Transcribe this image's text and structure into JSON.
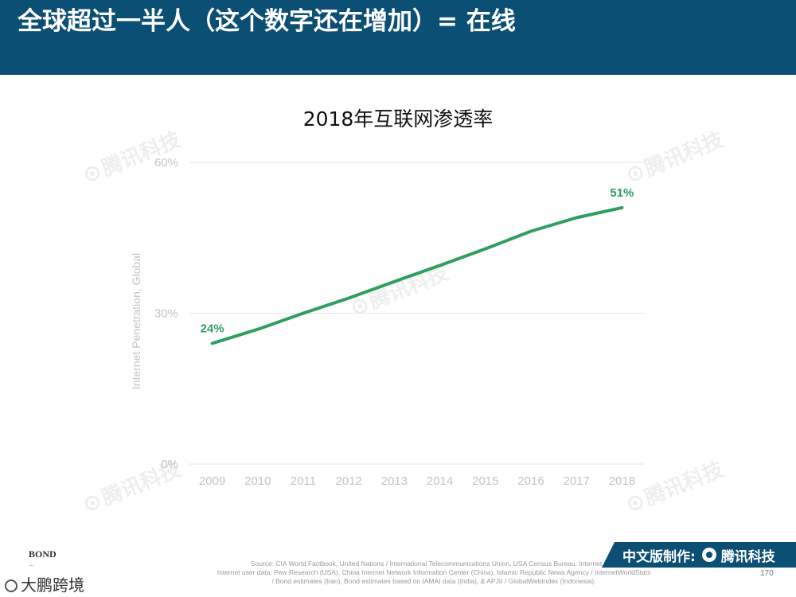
{
  "header": {
    "title": "全球超过一半人（这个数字还在增加）= 在线"
  },
  "chart_data": {
    "type": "line",
    "title": "2018年互联网渗透率",
    "xlabel": "",
    "ylabel": "Internet Penetration, Global",
    "categories": [
      "2009",
      "2010",
      "2011",
      "2012",
      "2013",
      "2014",
      "2015",
      "2016",
      "2017",
      "2018"
    ],
    "series": [
      {
        "name": "Internet Penetration, Global",
        "values": [
          24,
          26.8,
          30,
          33,
          36.3,
          39.5,
          42.8,
          46.3,
          49,
          51
        ],
        "color": "#2f9e5f"
      }
    ],
    "ylim": [
      0,
      60
    ],
    "yticks": [
      0,
      30,
      60
    ],
    "yticklabels": [
      "0%",
      "30%",
      "60%"
    ],
    "data_labels": [
      {
        "index": 0,
        "text": "24%"
      },
      {
        "index": 9,
        "text": "51%"
      }
    ],
    "grid": true,
    "gridColor": "#e6e6e6",
    "tickColor": "#c4c4c4"
  },
  "watermark": {
    "text": "腾讯科技",
    "glyph": "⊙"
  },
  "footer": {
    "source_lines": [
      "Source: CIA World Factbook, United Nations / International Telecommunications Union, USA Census Bureau. Internet user",
      "Internet user data: Pew Research (USA), China Internet Network Information Center (China), Islamic Republic News Agency / InternetWorldStats",
      "/ Bond estimates (Iran), Bond estimates based on IAMAI data (India), & APJII / GlobalWebIndex (Indonesia)."
    ],
    "page_number": "170"
  },
  "badge": {
    "label": "中文版制作:",
    "brand": "腾讯科技"
  },
  "bond": {
    "name": "BOND",
    "sub": "..."
  },
  "wechat": {
    "label": "大鹏跨境"
  },
  "colors": {
    "header_bg": "#0b4f75",
    "line": "#2f9e5f"
  }
}
